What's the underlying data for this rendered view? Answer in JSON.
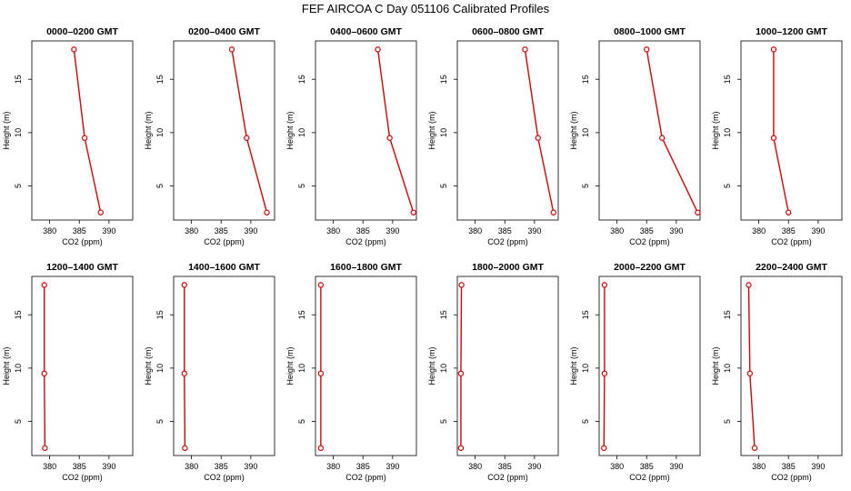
{
  "title": "FEF AIRCOA C  Day 051106  Calibrated Profiles",
  "colors": {
    "line": "#dd0000",
    "marker": "#dd0000",
    "axis": "#000000"
  },
  "chart_data": [
    {
      "type": "line",
      "title": "0000–0200 GMT",
      "xlabel": "CO2 (ppm)",
      "ylabel": "Height (m)",
      "series": [
        {
          "values": [
            [
              384.1,
              17.8
            ],
            [
              385.9,
              9.5
            ],
            [
              388.6,
              2.5
            ]
          ]
        }
      ]
    },
    {
      "type": "line",
      "title": "0200–0400 GMT",
      "xlabel": "CO2 (ppm)",
      "ylabel": "Height (m)",
      "series": [
        {
          "values": [
            [
              386.8,
              17.8
            ],
            [
              389.3,
              9.5
            ],
            [
              392.7,
              2.5
            ]
          ]
        }
      ]
    },
    {
      "type": "line",
      "title": "0400–0600 GMT",
      "xlabel": "CO2 (ppm)",
      "ylabel": "Height (m)",
      "series": [
        {
          "values": [
            [
              387.5,
              17.8
            ],
            [
              389.5,
              9.5
            ],
            [
              393.5,
              2.5
            ]
          ]
        }
      ]
    },
    {
      "type": "line",
      "title": "0600–0800 GMT",
      "xlabel": "CO2 (ppm)",
      "ylabel": "Height (m)",
      "series": [
        {
          "values": [
            [
              388.4,
              17.8
            ],
            [
              390.6,
              9.5
            ],
            [
              393.2,
              2.5
            ]
          ]
        }
      ]
    },
    {
      "type": "line",
      "title": "0800–1000 GMT",
      "xlabel": "CO2 (ppm)",
      "ylabel": "Height (m)",
      "series": [
        {
          "values": [
            [
              385.0,
              17.8
            ],
            [
              387.6,
              9.5
            ],
            [
              393.6,
              2.5
            ]
          ]
        }
      ]
    },
    {
      "type": "line",
      "title": "1000–1200 GMT",
      "xlabel": "CO2 (ppm)",
      "ylabel": "Height (m)",
      "series": [
        {
          "values": [
            [
              382.5,
              17.8
            ],
            [
              382.5,
              9.5
            ],
            [
              385.0,
              2.5
            ]
          ]
        }
      ]
    },
    {
      "type": "line",
      "title": "1200–1400 GMT",
      "xlabel": "CO2 (ppm)",
      "ylabel": "Height (m)",
      "series": [
        {
          "values": [
            [
              379.1,
              17.8
            ],
            [
              379.1,
              9.5
            ],
            [
              379.2,
              2.5
            ]
          ]
        }
      ]
    },
    {
      "type": "line",
      "title": "1400–1600 GMT",
      "xlabel": "CO2 (ppm)",
      "ylabel": "Height (m)",
      "series": [
        {
          "values": [
            [
              378.8,
              17.8
            ],
            [
              378.8,
              9.5
            ],
            [
              378.9,
              2.5
            ]
          ]
        }
      ]
    },
    {
      "type": "line",
      "title": "1600–1800 GMT",
      "xlabel": "CO2 (ppm)",
      "ylabel": "Height (m)",
      "series": [
        {
          "values": [
            [
              377.9,
              17.8
            ],
            [
              377.9,
              9.5
            ],
            [
              377.9,
              2.5
            ]
          ]
        }
      ]
    },
    {
      "type": "line",
      "title": "1800–2000 GMT",
      "xlabel": "CO2 (ppm)",
      "ylabel": "Height (m)",
      "series": [
        {
          "values": [
            [
              377.7,
              17.8
            ],
            [
              377.6,
              9.5
            ],
            [
              377.6,
              2.5
            ]
          ]
        }
      ]
    },
    {
      "type": "line",
      "title": "2000–2200 GMT",
      "xlabel": "CO2 (ppm)",
      "ylabel": "Height (m)",
      "series": [
        {
          "values": [
            [
              377.9,
              17.8
            ],
            [
              377.9,
              9.5
            ],
            [
              377.8,
              2.5
            ]
          ]
        }
      ]
    },
    {
      "type": "line",
      "title": "2200–2400 GMT",
      "xlabel": "CO2 (ppm)",
      "ylabel": "Height (m)",
      "series": [
        {
          "values": [
            [
              378.3,
              17.8
            ],
            [
              378.5,
              9.5
            ],
            [
              379.3,
              2.5
            ]
          ]
        }
      ]
    }
  ],
  "axes": {
    "xlim": [
      377,
      394
    ],
    "ylim": [
      1.8,
      18.6
    ],
    "xticks": [
      380,
      385,
      390
    ],
    "yticks": [
      5,
      10,
      15
    ]
  }
}
